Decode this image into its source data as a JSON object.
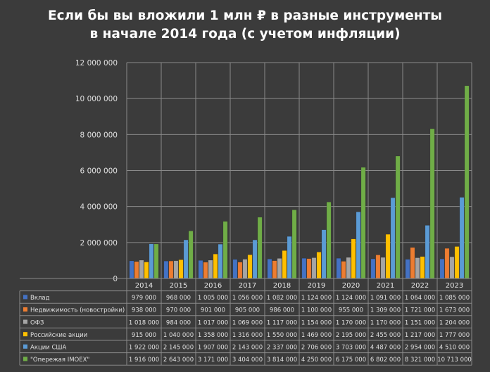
{
  "chart_data": {
    "type": "bar",
    "title_lines": [
      "Если бы вы вложили 1 млн ₽ в разные инструменты",
      "в начале 2014 года (с учетом инфляции)"
    ],
    "ylim": [
      0,
      12000000
    ],
    "y_ticks": [
      0,
      2000000,
      4000000,
      6000000,
      8000000,
      10000000,
      12000000
    ],
    "y_tick_labels": [
      "0",
      "2 000 000",
      "4 000 000",
      "6 000 000",
      "8 000 000",
      "10 000 000",
      "12 000 000"
    ],
    "grid": true,
    "categories": [
      "2014",
      "2015",
      "2016",
      "2017",
      "2018",
      "2019",
      "2020",
      "2021",
      "2022",
      "2023"
    ],
    "series": [
      {
        "name": "Вклад",
        "color": "#4472c4",
        "values": [
          979000,
          968000,
          1005000,
          1056000,
          1082000,
          1124000,
          1124000,
          1091000,
          1064000,
          1085000
        ],
        "labels": [
          "979 000",
          "968 000",
          "1 005 000",
          "1 056 000",
          "1 082 000",
          "1 124 000",
          "1 124 000",
          "1 091 000",
          "1 064 000",
          "1 085 000"
        ]
      },
      {
        "name": "Недвижимость  (новостройки)",
        "color": "#ed7d31",
        "values": [
          938000,
          970000,
          901000,
          905000,
          986000,
          1100000,
          955000,
          1309000,
          1721000,
          1673000
        ],
        "labels": [
          "938 000",
          "970 000",
          "901 000",
          "905 000",
          "986 000",
          "1 100 000",
          "955 000",
          "1 309 000",
          "1 721 000",
          "1 673 000"
        ]
      },
      {
        "name": "ОФЗ",
        "color": "#a5a5a5",
        "values": [
          1018000,
          984000,
          1017000,
          1069000,
          1117000,
          1154000,
          1170000,
          1170000,
          1151000,
          1204000
        ],
        "labels": [
          "1 018 000",
          "984 000",
          "1 017 000",
          "1 069 000",
          "1 117 000",
          "1 154 000",
          "1 170 000",
          "1 170 000",
          "1 151 000",
          "1 204 000"
        ]
      },
      {
        "name": "Российские акции",
        "color": "#ffc000",
        "values": [
          915000,
          1040000,
          1358000,
          1316000,
          1550000,
          1469000,
          2195000,
          2455000,
          1217000,
          1777000
        ],
        "labels": [
          "915 000",
          "1 040 000",
          "1 358 000",
          "1 316 000",
          "1 550 000",
          "1 469 000",
          "2 195 000",
          "2 455 000",
          "1 217 000",
          "1 777 000"
        ]
      },
      {
        "name": "Акции США",
        "color": "#5b9bd5",
        "values": [
          1922000,
          2145000,
          1907000,
          2143000,
          2337000,
          2706000,
          3703000,
          4487000,
          2954000,
          4510000
        ],
        "labels": [
          "1 922 000",
          "2 145 000",
          "1 907 000",
          "2 143 000",
          "2 337 000",
          "2 706 000",
          "3 703 000",
          "4 487 000",
          "2 954 000",
          "4 510 000"
        ]
      },
      {
        "name": "\"Опережая IMOEX\"",
        "color": "#70ad47",
        "values": [
          1916000,
          2643000,
          3171000,
          3404000,
          3814000,
          4250000,
          6175000,
          6802000,
          8321000,
          10713000
        ],
        "labels": [
          "1 916 000",
          "2 643 000",
          "3 171 000",
          "3 404 000",
          "3 814 000",
          "4 250 000",
          "6 175 000",
          "6 802 000",
          "8 321 000",
          "10 713 000"
        ]
      }
    ]
  }
}
